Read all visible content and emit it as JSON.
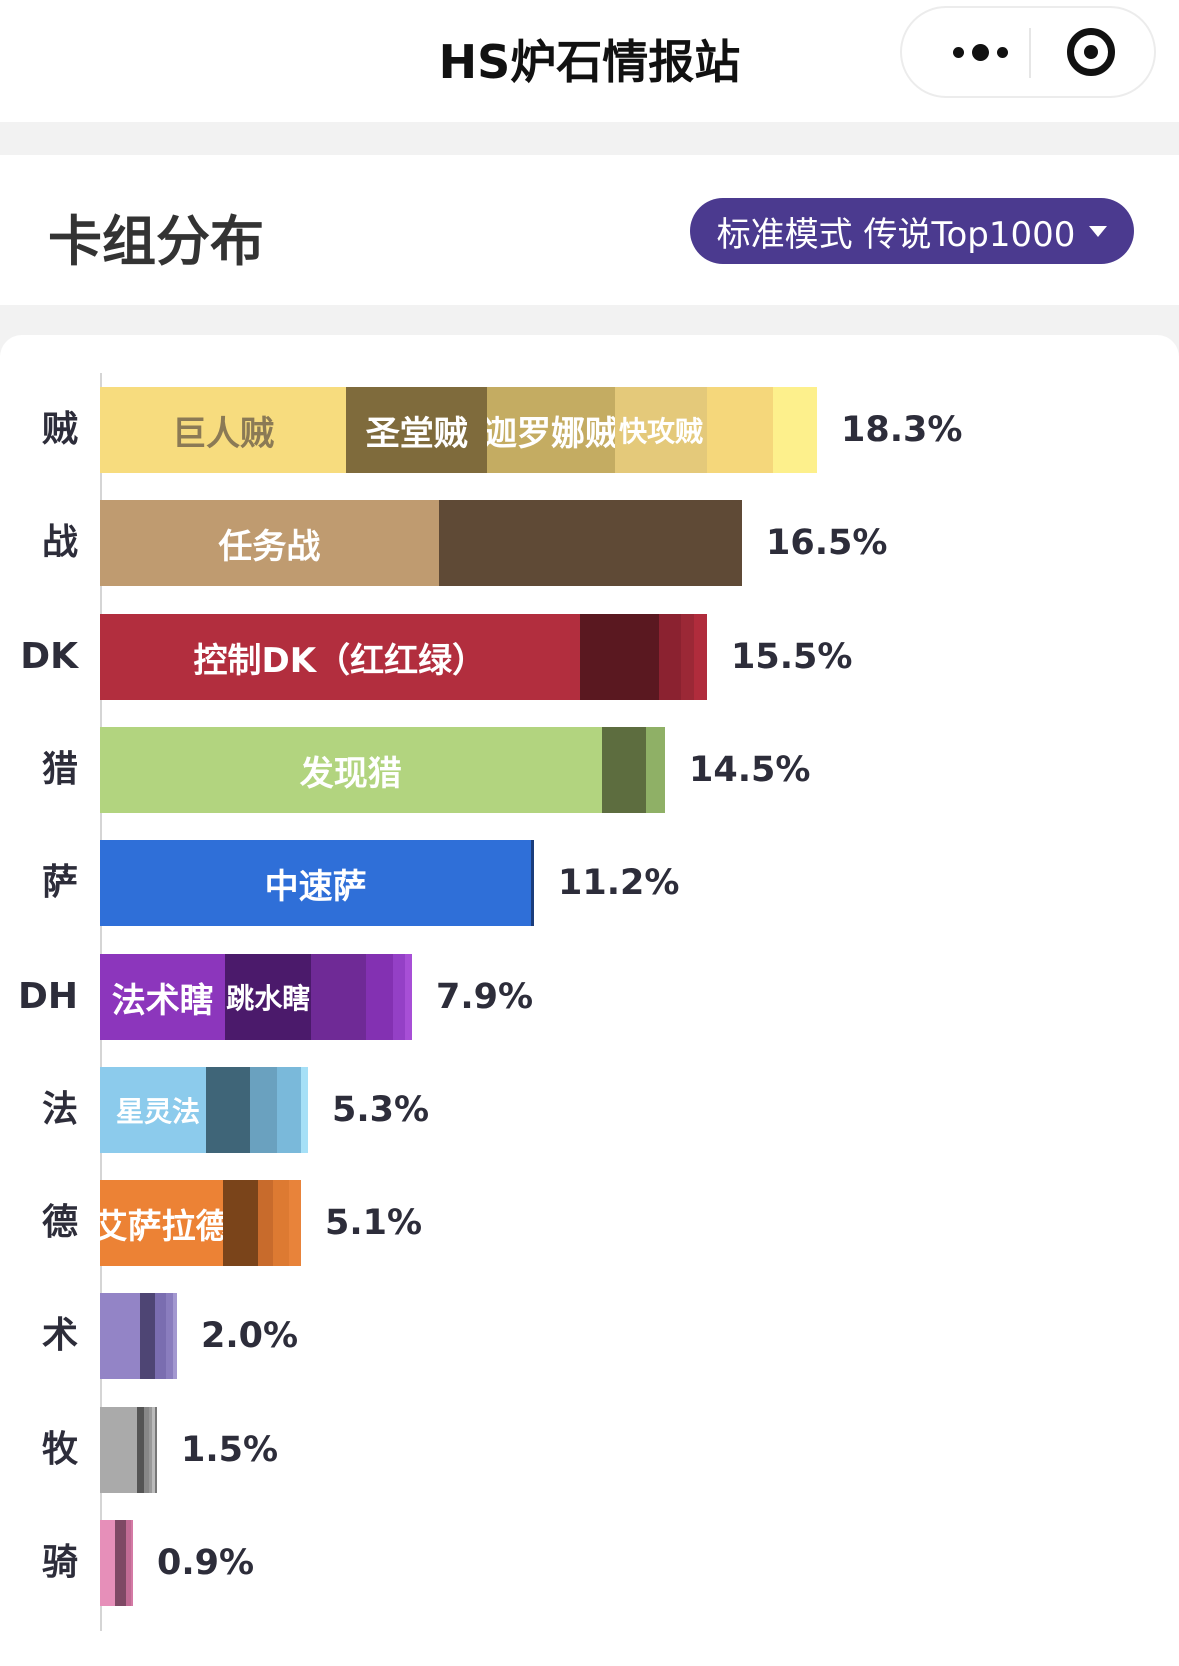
{
  "app": {
    "title": "HS炉石情报站"
  },
  "header": {
    "title": "卡组分布",
    "mode_label": "标准模式 传说Top1000"
  },
  "chart_data": {
    "type": "bar",
    "orientation": "horizontal",
    "stacked": true,
    "unit": "%",
    "xlim": [
      0,
      20
    ],
    "rows": [
      {
        "class": "贼",
        "total": 18.3,
        "total_label": "18.3%",
        "segments": [
          {
            "name": "巨人贼",
            "value": 5.6,
            "color": "#f7dc7e",
            "text": "dark"
          },
          {
            "name": "圣堂贼",
            "value": 3.2,
            "color": "#7f6b3c"
          },
          {
            "name": "迦罗娜贼",
            "value": 2.9,
            "color": "#c4ac62"
          },
          {
            "name": "快攻贼",
            "value": 2.1,
            "color": "#e4c97a",
            "small": true
          },
          {
            "name": "",
            "value": 1.5,
            "color": "#f5d77b"
          },
          {
            "name": "",
            "value": 1.0,
            "color": "#fdf08c"
          }
        ]
      },
      {
        "class": "战",
        "total": 16.5,
        "total_label": "16.5%",
        "segments": [
          {
            "name": "任务战",
            "value": 7.7,
            "color": "#bf9b70"
          },
          {
            "name": "",
            "value": 6.9,
            "color": "#5f4a36"
          }
        ]
      },
      {
        "class": "DK",
        "total": 15.5,
        "total_label": "15.5%",
        "segments": [
          {
            "name": "控制DK（红红绿）",
            "value": 10.9,
            "color": "#b22e3e"
          },
          {
            "name": "",
            "value": 1.8,
            "color": "#5a1820"
          },
          {
            "name": "",
            "value": 0.5,
            "color": "#8b2230"
          },
          {
            "name": "",
            "value": 0.3,
            "color": "#9b2836"
          },
          {
            "name": "",
            "value": 0.3,
            "color": "#b02c3c"
          }
        ]
      },
      {
        "class": "猎",
        "total": 14.5,
        "total_label": "14.5%",
        "segments": [
          {
            "name": "发现猎",
            "value": 11.4,
            "color": "#b2d47f"
          },
          {
            "name": "",
            "value": 1.0,
            "color": "#5d6d3f"
          },
          {
            "name": "",
            "value": 0.45,
            "color": "#8fb066"
          }
        ]
      },
      {
        "class": "萨",
        "total": 11.2,
        "total_label": "11.2%",
        "segments": [
          {
            "name": "中速萨",
            "value": 9.8,
            "color": "#2f6fd8"
          },
          {
            "name": "",
            "value": 0.07,
            "color": "#1b3d7c"
          }
        ]
      },
      {
        "class": "DH",
        "total": 7.9,
        "total_label": "7.9%",
        "segments": [
          {
            "name": "法术瞎",
            "value": 2.85,
            "color": "#8c36bc"
          },
          {
            "name": "跳水瞎",
            "value": 1.95,
            "color": "#4b1a6b",
            "small": true
          },
          {
            "name": "",
            "value": 1.25,
            "color": "#6f2a96"
          },
          {
            "name": "",
            "value": 0.62,
            "color": "#8331b2"
          },
          {
            "name": "",
            "value": 0.27,
            "color": "#9440c6"
          },
          {
            "name": "",
            "value": 0.15,
            "color": "#a74fd6"
          }
        ]
      },
      {
        "class": "法",
        "total": 5.3,
        "total_label": "5.3%",
        "segments": [
          {
            "name": "星灵法",
            "value": 2.4,
            "color": "#8ccbec",
            "small": true,
            "left": true
          },
          {
            "name": "",
            "value": 1.0,
            "color": "#3f6578"
          },
          {
            "name": "",
            "value": 0.62,
            "color": "#6aa1bf"
          },
          {
            "name": "",
            "value": 0.55,
            "color": "#7ab9da"
          },
          {
            "name": "",
            "value": 0.15,
            "color": "#a6e0f7"
          }
        ]
      },
      {
        "class": "德",
        "total": 5.1,
        "total_label": "5.1%",
        "segments": [
          {
            "name": "艾萨拉德",
            "value": 2.8,
            "color": "#ec8235"
          },
          {
            "name": "",
            "value": 0.8,
            "color": "#7a441a"
          },
          {
            "name": "",
            "value": 0.33,
            "color": "#c86b2c"
          },
          {
            "name": "",
            "value": 0.37,
            "color": "#dd7a32"
          },
          {
            "name": "",
            "value": 0.27,
            "color": "#e8833a"
          }
        ]
      },
      {
        "class": "术",
        "total": 2.0,
        "total_label": "2.0%",
        "segments": [
          {
            "name": "",
            "value": 0.9,
            "color": "#9384c6"
          },
          {
            "name": "",
            "value": 0.35,
            "color": "#4e4574"
          },
          {
            "name": "",
            "value": 0.25,
            "color": "#7a6db0"
          },
          {
            "name": "",
            "value": 0.15,
            "color": "#8a7dbe"
          },
          {
            "name": "",
            "value": 0.1,
            "color": "#a398d0"
          }
        ]
      },
      {
        "class": "牧",
        "total": 1.5,
        "total_label": "1.5%",
        "segments": [
          {
            "name": "",
            "value": 0.83,
            "color": "#aaaaaa"
          },
          {
            "name": "",
            "value": 0.17,
            "color": "#555555"
          },
          {
            "name": "",
            "value": 0.12,
            "color": "#888888"
          },
          {
            "name": "",
            "value": 0.07,
            "color": "#999999"
          },
          {
            "name": "",
            "value": 0.07,
            "color": "#bbbbbb"
          },
          {
            "name": "",
            "value": 0.04,
            "color": "#777777"
          }
        ]
      },
      {
        "class": "骑",
        "total": 0.9,
        "total_label": "0.9%",
        "segments": [
          {
            "name": "",
            "value": 0.35,
            "color": "#e68fb9"
          },
          {
            "name": "",
            "value": 0.25,
            "color": "#7e4864"
          },
          {
            "name": "",
            "value": 0.1,
            "color": "#c16b94"
          },
          {
            "name": "",
            "value": 0.05,
            "color": "#d47aa5"
          }
        ]
      }
    ]
  }
}
